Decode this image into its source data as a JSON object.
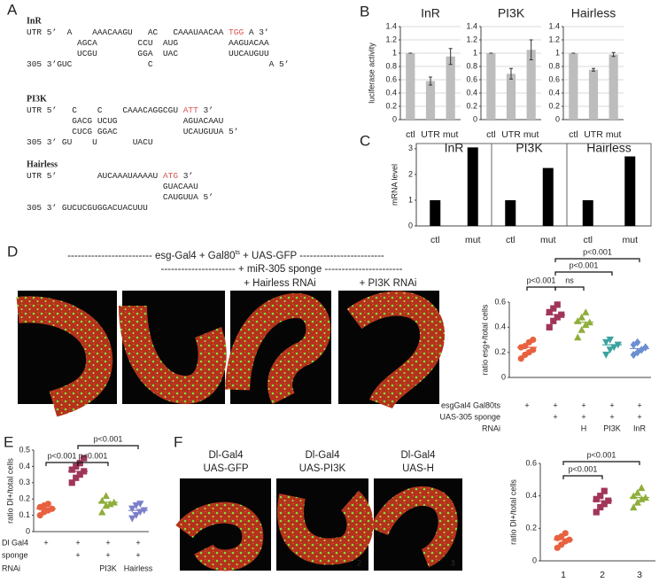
{
  "panel_labels": [
    "A",
    "B",
    "C",
    "D",
    "E",
    "F"
  ],
  "sequences": [
    {
      "gene": "InR",
      "lines": [
        [
          "UTR 5’  A    AAACAAGU   AC   CAAAUAACAA ",
          {
            "text": "TGG",
            "color": "#d9534f"
          },
          " A 3’"
        ],
        [
          "          AGCA        CCU  AUG          AAGUACAA"
        ],
        [
          "          UCGU        GGA  UAC          UUCAUGUU"
        ],
        [
          "305 3’GUC               C                       A 5’"
        ]
      ]
    },
    {
      "gene": "PI3K",
      "lines": [
        [
          "UTR 5’   C    C    CAAACAGGCGU ",
          {
            "text": "ATT",
            "color": "#d9534f"
          },
          " 3’"
        ],
        [
          "         GACG UCUG             AGUACAAU"
        ],
        [
          "         CUCG GGAC             UCAUGUUA 5’"
        ],
        [
          "305 3’ GU    U       UACU"
        ]
      ]
    },
    {
      "gene": "Hairless",
      "lines": [
        [
          "UTR 5’        AUCAAAUAAAAU ",
          {
            "text": "ATG",
            "color": "#d9534f"
          },
          " 3’"
        ],
        [
          "                           GUACAAU"
        ],
        [
          "                           CAUGUUA 5’"
        ],
        [
          "305 3’ GUCUCGUGGACUACUUU"
        ]
      ]
    }
  ],
  "micrographs_D": {
    "line1": [
      "------------------------- esg-Gal4 + Gal80",
      "ts",
      " + UAS-GFP -------------------------"
    ],
    "line2": "---------------------- + miR-305 sponge -----------------------",
    "labels": [
      "+ Hairless RNAi",
      "+ PI3K RNAi"
    ]
  },
  "micrographs_F": {
    "labels": [
      [
        "Dl-Gal4",
        "UAS-GFP"
      ],
      [
        "Dl-Gal4",
        "UAS-PI3K"
      ],
      [
        "Dl-Gal4",
        "UAS-H"
      ]
    ],
    "numbers": [
      "1",
      "2",
      "3"
    ]
  },
  "chart_data": [
    {
      "type": "bar",
      "ylabel": "luciferase activity",
      "categories": [
        "ctl",
        "UTR",
        "mut"
      ],
      "color": "#bdbdbd",
      "grid": true,
      "ylim": [
        0,
        1.4
      ],
      "yticks": [
        0,
        0.2,
        0.4,
        0.6,
        0.8,
        1,
        1.2,
        1.4
      ],
      "facets": [
        {
          "title": "InR",
          "values": [
            1,
            0.58,
            0.95
          ],
          "errors": [
            0,
            0.06,
            0.12
          ]
        },
        {
          "title": "PI3K",
          "values": [
            1,
            0.69,
            1.05
          ],
          "errors": [
            0,
            0.08,
            0.15
          ]
        },
        {
          "title": "Hairless",
          "values": [
            1,
            0.75,
            0.98
          ],
          "errors": [
            0,
            0.02,
            0.03
          ]
        }
      ]
    },
    {
      "type": "bar",
      "ylabel": "mRNA level",
      "categories": [
        "ctl",
        "mut"
      ],
      "color": "#000000",
      "grid": false,
      "ylim": [
        0,
        3.2
      ],
      "yticks": [
        0,
        1,
        2,
        3
      ],
      "facets": [
        {
          "title": "InR",
          "values": [
            1,
            3.05
          ]
        },
        {
          "title": "PI3K",
          "values": [
            1,
            2.25
          ]
        },
        {
          "title": "Hairless",
          "values": [
            1,
            2.7
          ]
        }
      ]
    },
    {
      "type": "strip",
      "ylabel": "ratio esg+/total cells",
      "ylim": [
        0,
        0.6
      ],
      "yticks": [
        0,
        0.2,
        0.4,
        0.6
      ],
      "groups": [
        {
          "color": "#e8613f",
          "marker": "circle",
          "values": [
            0.15,
            0.18,
            0.2,
            0.22,
            0.24,
            0.25,
            0.28,
            0.3
          ],
          "median": 0.24
        },
        {
          "color": "#a0355a",
          "marker": "square",
          "values": [
            0.4,
            0.45,
            0.48,
            0.5,
            0.52,
            0.55,
            0.58
          ],
          "median": 0.5
        },
        {
          "color": "#8fae3a",
          "marker": "triangle-up",
          "values": [
            0.32,
            0.38,
            0.42,
            0.44,
            0.45,
            0.48,
            0.52
          ],
          "median": 0.44
        },
        {
          "color": "#3aa39d",
          "marker": "triangle-down",
          "values": [
            0.18,
            0.22,
            0.24,
            0.26,
            0.28,
            0.3
          ],
          "median": 0.26
        },
        {
          "color": "#6b8fd0",
          "marker": "diamond",
          "values": [
            0.18,
            0.2,
            0.22,
            0.24,
            0.26,
            0.28
          ],
          "median": 0.23
        }
      ],
      "annotations": [
        "p<0.001",
        "ns",
        "p<0.001",
        "p<0.001"
      ],
      "conditions": [
        {
          "label": "esgGal4 Gal80ts",
          "cells": [
            "+",
            "+",
            "+",
            "+",
            "+"
          ]
        },
        {
          "label": "UAS-305 sponge",
          "cells": [
            null,
            "+",
            "+",
            "+",
            "+"
          ]
        },
        {
          "label": "RNAi",
          "cells": [
            null,
            null,
            "H",
            "PI3K",
            "InR"
          ]
        }
      ]
    },
    {
      "type": "strip",
      "ylabel": "ratio Dl+/total cells",
      "ylim": [
        0,
        0.5
      ],
      "yticks": [
        0,
        0.1,
        0.2,
        0.3,
        0.4,
        0.5
      ],
      "groups": [
        {
          "color": "#e8613f",
          "marker": "circle",
          "values": [
            0.1,
            0.12,
            0.13,
            0.14,
            0.15,
            0.16,
            0.17
          ],
          "median": 0.14
        },
        {
          "color": "#a0355a",
          "marker": "square",
          "values": [
            0.3,
            0.33,
            0.35,
            0.37,
            0.38,
            0.4,
            0.42,
            0.45
          ],
          "median": 0.37
        },
        {
          "color": "#8fae3a",
          "marker": "triangle-up",
          "values": [
            0.12,
            0.16,
            0.17,
            0.18,
            0.19,
            0.22
          ],
          "median": 0.18
        },
        {
          "color": "#7b7fc9",
          "marker": "triangle-down",
          "values": [
            0.08,
            0.1,
            0.12,
            0.13,
            0.14,
            0.16,
            0.17
          ],
          "median": 0.13
        }
      ],
      "annotations": [
        "p<0.001",
        "p<0.001",
        "p<0.001"
      ],
      "conditions": [
        {
          "label": "Dl Gal4",
          "cells": [
            "+",
            "+",
            "+",
            "+"
          ]
        },
        {
          "label": "sponge",
          "cells": [
            null,
            "+",
            "+",
            "+"
          ]
        },
        {
          "label": "RNAi",
          "cells": [
            null,
            null,
            "PI3K",
            "Hairless"
          ]
        }
      ]
    },
    {
      "type": "strip",
      "ylabel": "ratio Dl+/total cells",
      "ylim": [
        0,
        0.6
      ],
      "yticks": [
        0,
        0.2,
        0.4,
        0.6
      ],
      "categories": [
        "1",
        "2",
        "3"
      ],
      "groups": [
        {
          "color": "#e8613f",
          "marker": "circle",
          "values": [
            0.08,
            0.1,
            0.12,
            0.13,
            0.14,
            0.15,
            0.17
          ],
          "median": 0.13
        },
        {
          "color": "#a0355a",
          "marker": "square",
          "values": [
            0.3,
            0.33,
            0.35,
            0.37,
            0.38,
            0.4,
            0.43
          ],
          "median": 0.37
        },
        {
          "color": "#8fae3a",
          "marker": "triangle-up",
          "values": [
            0.33,
            0.36,
            0.38,
            0.39,
            0.4,
            0.42,
            0.45
          ],
          "median": 0.39
        }
      ],
      "annotations": [
        "p<0.001",
        "p<0.001"
      ]
    }
  ]
}
